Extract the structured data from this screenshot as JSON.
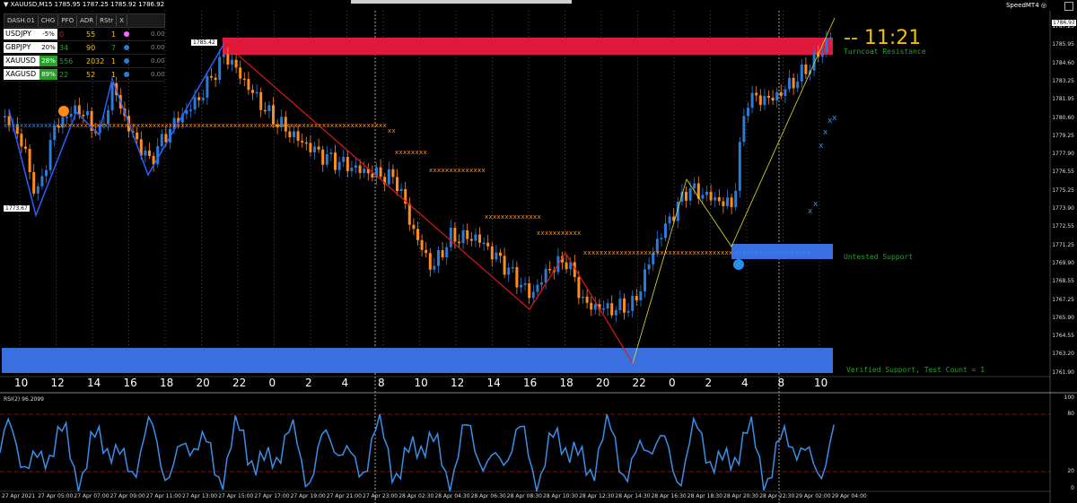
{
  "window": {
    "title": "XAUUSD,M15  1785.95 1787.25 1785.92 1786.92",
    "brand": "SpeedMT4",
    "countdown": "-- 11:21"
  },
  "dashboard": {
    "tab": "DASH.01",
    "headers": [
      "CHG",
      "PFO",
      "ADR",
      "RStr",
      "X"
    ],
    "rows": [
      {
        "symbol": "USDJPY",
        "chg": "-5%",
        "pfo": "0",
        "adr": "55",
        "rstr": "1",
        "dot": "#ff66ff",
        "value": "0.00",
        "chg_bg": "#ffffff",
        "chg_fg": "#000"
      },
      {
        "symbol": "GBPJPY",
        "chg": "20%",
        "pfo": "34",
        "adr": "90",
        "rstr": "7",
        "dot": "#2a7bd8",
        "value": "0.00",
        "chg_bg": "#ffffff",
        "chg_fg": "#000"
      },
      {
        "symbol": "XAUUSD",
        "chg": "28%",
        "pfo": "556",
        "adr": "2032",
        "rstr": "1",
        "dot": "#2a7bd8",
        "value": "0.00",
        "chg_bg": "#2aa02a",
        "chg_fg": "#fff"
      },
      {
        "symbol": "XAGUSD",
        "chg": "89%",
        "pfo": "22",
        "adr": "52",
        "rstr": "1",
        "dot": "#2a7bd8",
        "value": "0.00",
        "chg_bg": "#2aa02a",
        "chg_fg": "#fff"
      }
    ]
  },
  "labels": {
    "high_tag": "1785.42",
    "low_tag": "1773.67",
    "resistance": "Turncoat Resistance",
    "untested": "Untested Support",
    "verified": "Verified Support, Test Count = 1",
    "current_price": "1786.92"
  },
  "price_axis": [
    "1787.25",
    "1785.95",
    "1784.60",
    "1783.25",
    "1781.95",
    "1780.60",
    "1779.25",
    "1777.90",
    "1776.55",
    "1775.25",
    "1773.90",
    "1772.55",
    "1771.25",
    "1769.90",
    "1768.55",
    "1767.25",
    "1765.90",
    "1764.55",
    "1763.20",
    "1761.90"
  ],
  "hour_labels": [
    "10",
    "12",
    "14",
    "16",
    "18",
    "20",
    "22",
    "0",
    "2",
    "4",
    "8",
    "10",
    "12",
    "14",
    "16",
    "18",
    "20",
    "22",
    "0",
    "2",
    "4",
    "8",
    "10"
  ],
  "rsi": {
    "label": "RSI(2) 96.2099",
    "levels": [
      "100",
      "80",
      "20",
      "0"
    ]
  },
  "time_axis": [
    "27 Apr 2021",
    "27 Apr 05:00",
    "27 Apr 07:00",
    "27 Apr 09:00",
    "27 Apr 11:00",
    "27 Apr 13:00",
    "27 Apr 15:00",
    "27 Apr 17:00",
    "27 Apr 19:00",
    "27 Apr 21:00",
    "27 Apr 23:00",
    "28 Apr 02:30",
    "28 Apr 04:30",
    "28 Apr 06:30",
    "28 Apr 08:30",
    "28 Apr 10:30",
    "28 Apr 12:30",
    "28 Apr 14:30",
    "28 Apr 16:30",
    "28 Apr 18:30",
    "28 Apr 20:30",
    "28 Apr 22:30",
    "29 Apr 02:00",
    "29 Apr 04:00"
  ],
  "colors": {
    "bull": "#2a7bd8",
    "bear": "#ff8c1a",
    "resistance": "#e0183c",
    "support": "#3a6fe0",
    "rsi": "#3a8fe8",
    "zigzag_down": "#e01818",
    "zigzag_up": "#e8e020"
  }
}
